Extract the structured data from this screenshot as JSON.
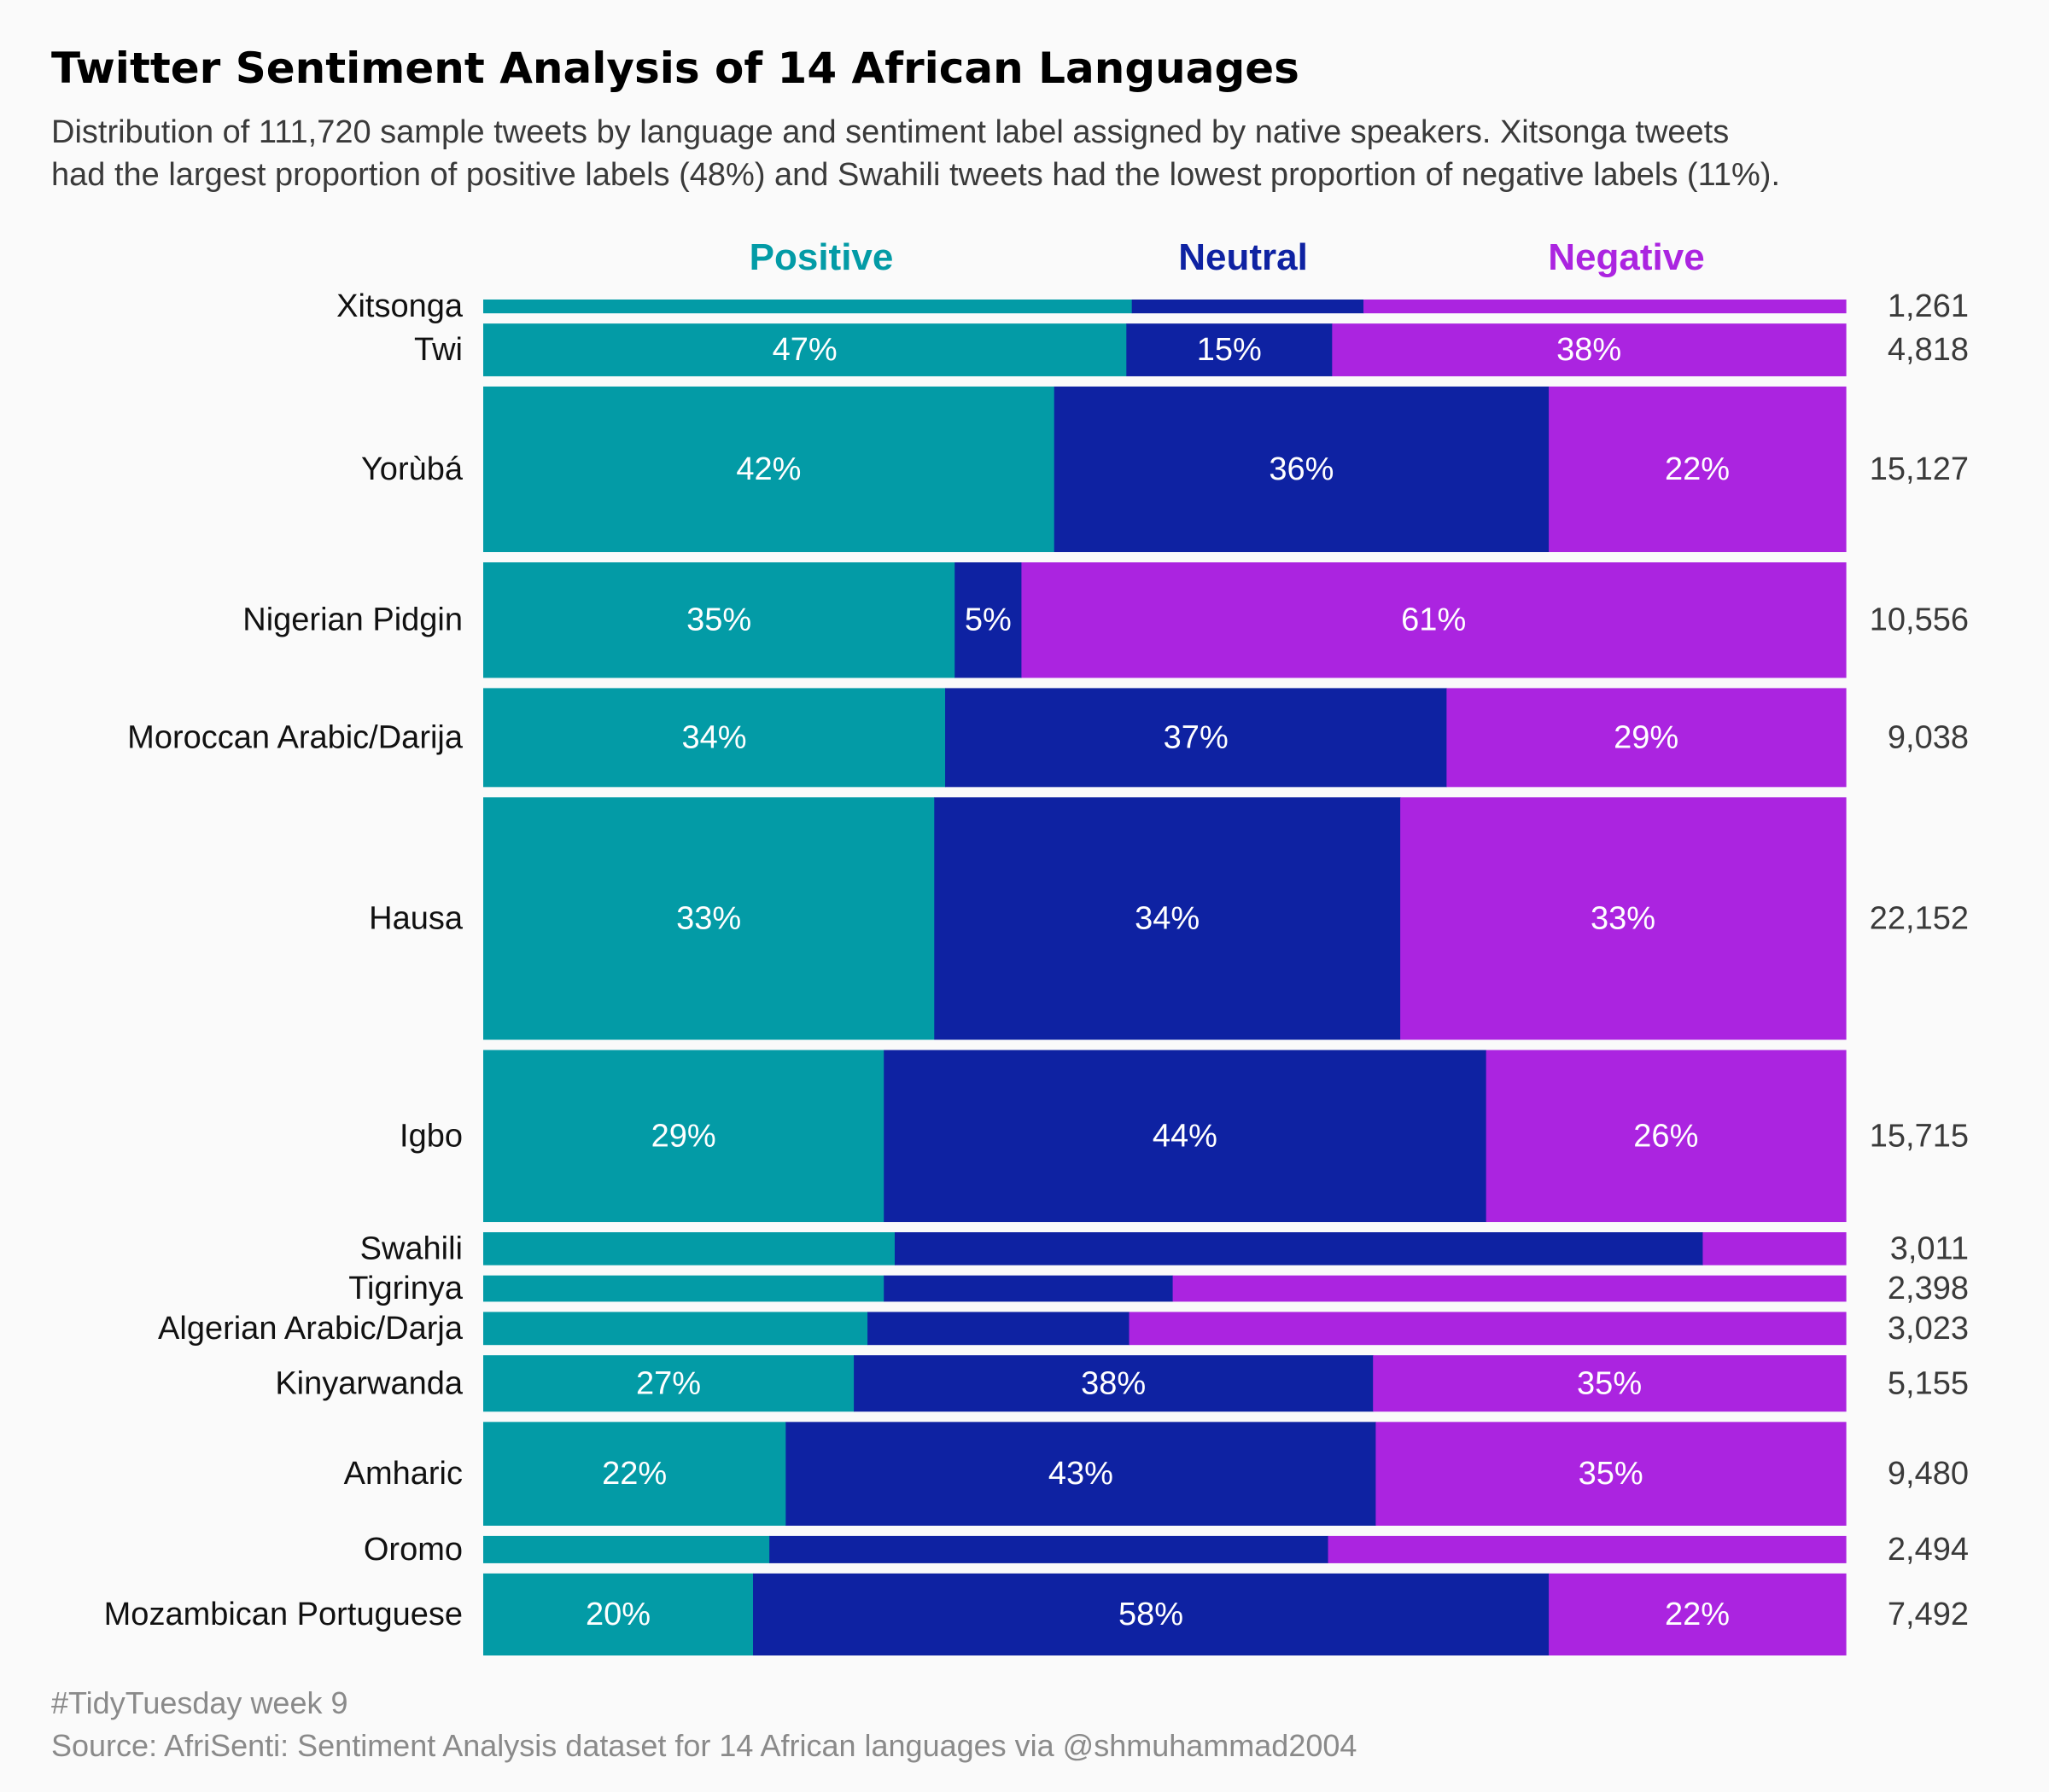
{
  "title": "Twitter Sentiment Analysis of 14 African Languages",
  "subtitle_lines": [
    "Distribution of 111,720 sample tweets by language and sentiment label assigned by native speakers. Xitsonga tweets",
    "had the largest proportion of positive labels (48%) and Swahili tweets had the lowest proportion of negative labels (11%)."
  ],
  "caption_lines": [
    "#TidyTuesday week 9",
    "Source: AfriSenti: Sentiment Analysis dataset for 14 African languages via @shmuhammad2004"
  ],
  "colors": {
    "positive": "#039ba6",
    "neutral": "#0e22a2",
    "negative": "#ab24e0",
    "background": "#fafafa"
  },
  "chart_data": {
    "type": "bar",
    "orientation": "horizontal",
    "stacked": "percent",
    "bar_height_encodes": "tweet count",
    "series": [
      {
        "name": "Positive",
        "color": "#039ba6"
      },
      {
        "name": "Neutral",
        "color": "#0e22a2"
      },
      {
        "name": "Negative",
        "color": "#ab24e0"
      }
    ],
    "categories": [
      {
        "language": "Xitsonga",
        "count": 1261,
        "count_label": "1,261",
        "positive": 47.6,
        "neutral": 17.0,
        "negative": 35.4,
        "show_labels": false
      },
      {
        "language": "Twi",
        "count": 4818,
        "count_label": "4,818",
        "positive": 47.2,
        "neutral": 15.1,
        "negative": 37.7,
        "show_labels": true
      },
      {
        "language": "Yorùbá",
        "count": 15127,
        "count_label": "15,127",
        "positive": 41.9,
        "neutral": 36.3,
        "negative": 21.8,
        "show_labels": true
      },
      {
        "language": "Nigerian Pidgin",
        "count": 10556,
        "count_label": "10,556",
        "positive": 34.6,
        "neutral": 4.9,
        "negative": 60.5,
        "show_labels": true
      },
      {
        "language": "Moroccan Arabic/Darija",
        "count": 9038,
        "count_label": "9,038",
        "positive": 33.9,
        "neutral": 36.8,
        "negative": 29.3,
        "show_labels": true
      },
      {
        "language": "Hausa",
        "count": 22152,
        "count_label": "22,152",
        "positive": 33.1,
        "neutral": 34.2,
        "negative": 32.7,
        "show_labels": true
      },
      {
        "language": "Igbo",
        "count": 15715,
        "count_label": "15,715",
        "positive": 29.4,
        "neutral": 44.2,
        "negative": 26.4,
        "show_labels": true
      },
      {
        "language": "Swahili",
        "count": 3011,
        "count_label": "3,011",
        "positive": 30.2,
        "neutral": 59.3,
        "negative": 10.5,
        "show_labels": false
      },
      {
        "language": "Tigrinya",
        "count": 2398,
        "count_label": "2,398",
        "positive": 29.4,
        "neutral": 21.2,
        "negative": 49.4,
        "show_labels": false
      },
      {
        "language": "Algerian Arabic/Darja",
        "count": 3023,
        "count_label": "3,023",
        "positive": 28.2,
        "neutral": 19.2,
        "negative": 52.6,
        "show_labels": false
      },
      {
        "language": "Kinyarwanda",
        "count": 5155,
        "count_label": "5,155",
        "positive": 27.2,
        "neutral": 38.1,
        "negative": 34.7,
        "show_labels": true
      },
      {
        "language": "Amharic",
        "count": 9480,
        "count_label": "9,480",
        "positive": 22.2,
        "neutral": 43.3,
        "negative": 34.5,
        "show_labels": true
      },
      {
        "language": "Oromo",
        "count": 2494,
        "count_label": "2,494",
        "positive": 21.0,
        "neutral": 41.0,
        "negative": 38.0,
        "show_labels": false
      },
      {
        "language": "Mozambican Portuguese",
        "count": 7492,
        "count_label": "7,492",
        "positive": 19.8,
        "neutral": 58.4,
        "negative": 21.8,
        "show_labels": true
      }
    ],
    "xlim": [
      0,
      100
    ],
    "grid": false
  }
}
